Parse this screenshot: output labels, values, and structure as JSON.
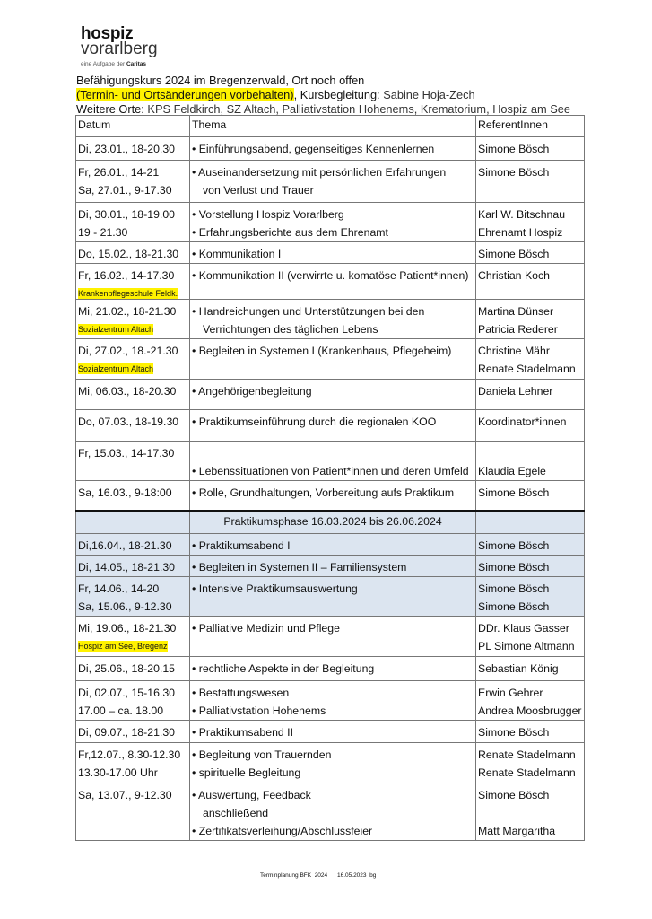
{
  "logo": {
    "line1": "hospiz",
    "line2": "vorarlberg",
    "tagline": "eine Aufgabe der",
    "brand": "Caritas"
  },
  "header": {
    "title": "Befähigungskurs 2024 im Bregenzerwald, Ort noch offen",
    "reservation": "(Termin- und Ortsänderungen vorbehalten)",
    "course_lead_label": "Kursbegleitung:",
    "course_lead": "Sabine Hoja-Zech",
    "other_places_label": "Weitere Orte:",
    "other_places": "KPS Feldkirch, SZ Altach, Palliativstation Hohenems, Krematorium, Hospiz am See"
  },
  "colors": {
    "highlight": "#fff200",
    "practice_bg": "#dce5f0"
  },
  "table": {
    "headers": [
      "Datum",
      "Thema",
      "ReferentInnen"
    ],
    "rows": [
      {
        "date": [
          "Di, 23.01., 18-20.30"
        ],
        "topic": [
          "Einführungsabend, gegenseitiges Kennenlernen"
        ],
        "speakers": [
          "Simone Bösch"
        ]
      },
      {
        "date": [
          "Fr, 26.01., 14-21",
          "Sa, 27.01., 9-17.30"
        ],
        "topic": [
          "Auseinandersetzung mit persönlichen Erfahrungen",
          "von Verlust und Trauer"
        ],
        "speakers": [
          "Simone Bösch"
        ]
      },
      {
        "date": [
          "Di, 30.01., 18-19.00",
          "19 - 21.30"
        ],
        "topic": [
          "Vorstellung Hospiz Vorarlberg",
          "Erfahrungsberichte aus dem Ehrenamt"
        ],
        "speakers": [
          "Karl W. Bitschnau",
          "Ehrenamt Hospiz"
        ]
      },
      {
        "date": [
          "Do, 15.02., 18-21.30"
        ],
        "topic": [
          "Kommunikation I"
        ],
        "speakers": [
          "Simone Bösch"
        ]
      },
      {
        "date": [
          "Fr, 16.02., 14-17.30"
        ],
        "note": "Krankenpflegeschule Feldk.",
        "topic": [
          "Kommunikation II (verwirrte u. komatöse Patient*innen)"
        ],
        "speakers": [
          "Christian Koch"
        ]
      },
      {
        "date": [
          "Mi, 21.02., 18-21.30"
        ],
        "note": "Sozialzentrum Altach",
        "topic": [
          "Handreichungen und Unterstützungen bei den",
          "Verrichtungen des täglichen Lebens"
        ],
        "speakers": [
          "Martina Dünser",
          "Patricia Rederer"
        ]
      },
      {
        "date": [
          "Di, 27.02., 18.-21.30"
        ],
        "note": "Sozialzentrum Altach",
        "topic": [
          "Begleiten in Systemen I (Krankenhaus, Pflegeheim)"
        ],
        "speakers": [
          "Christine Mähr",
          "Renate Stadelmann"
        ]
      },
      {
        "date": [
          "Mi, 06.03., 18-20.30"
        ],
        "topic": [
          "Angehörigenbegleitung"
        ],
        "speakers": [
          "Daniela Lehner"
        ]
      },
      {
        "date": [
          "Do, 07.03., 18-19.30"
        ],
        "topic": [
          "Praktikumseinführung durch die regionalen KOO"
        ],
        "speakers": [
          "Koordinator*innen"
        ]
      },
      {
        "date": [
          "Fr, 15.03., 14-17.30"
        ],
        "topic": [
          "",
          "Lebenssituationen von Patient*innen und deren Umfeld"
        ],
        "speakers": [
          "",
          "Klaudia Egele"
        ]
      },
      {
        "date": [
          "Sa, 16.03., 9-18:00"
        ],
        "topic": [
          "Rolle, Grundhaltungen, Vorbereitung aufs Praktikum"
        ],
        "speakers": [
          "Simone Bösch"
        ]
      },
      {
        "phase": "Praktikumsphase 16.03.2024 bis 26.06.2024"
      },
      {
        "date": [
          "Di,16.04., 18-21.30"
        ],
        "topic": [
          "Praktikumsabend I"
        ],
        "speakers": [
          "Simone Bösch"
        ],
        "blue": true
      },
      {
        "date": [
          "Di, 14.05., 18-21.30"
        ],
        "topic": [
          "Begleiten in Systemen II – Familiensystem"
        ],
        "speakers": [
          "Simone Bösch"
        ],
        "blue": true
      },
      {
        "date": [
          "Fr, 14.06., 14-20",
          "Sa, 15.06., 9-12.30"
        ],
        "topic": [
          "Intensive Praktikumsauswertung"
        ],
        "speakers": [
          "Simone Bösch",
          "Simone Bösch"
        ],
        "blue": true
      },
      {
        "date": [
          "Mi, 19.06., 18-21.30"
        ],
        "note": "Hospiz am See, Bregenz",
        "topic": [
          "Palliative Medizin und Pflege"
        ],
        "speakers": [
          "DDr. Klaus Gasser",
          "PL Simone Altmann"
        ]
      },
      {
        "date": [
          "Di, 25.06., 18-20.15"
        ],
        "topic": [
          "rechtliche Aspekte in der Begleitung"
        ],
        "speakers": [
          "Sebastian König"
        ]
      },
      {
        "date": [
          "Di, 02.07., 15-16.30",
          "17.00 – ca. 18.00"
        ],
        "topic": [
          "Bestattungswesen",
          "Palliativstation Hohenems"
        ],
        "speakers": [
          "Erwin Gehrer",
          "Andrea Moosbrugger"
        ]
      },
      {
        "date": [
          "Di, 09.07., 18-21.30"
        ],
        "topic": [
          "Praktikumsabend II"
        ],
        "speakers": [
          "Simone Bösch"
        ]
      },
      {
        "date": [
          "Fr,12.07., 8.30-12.30",
          "13.30-17.00 Uhr"
        ],
        "topic": [
          "Begleitung von Trauernden",
          "spirituelle Begleitung"
        ],
        "speakers": [
          "Renate Stadelmann",
          "Renate Stadelmann"
        ]
      },
      {
        "date": [
          "Sa, 13.07., 9-12.30"
        ],
        "topic": [
          "Auswertung, Feedback",
          "anschließend",
          "Zertifikatsverleihung/Abschlussfeier"
        ],
        "speakers": [
          "Simone Bösch",
          "",
          "Matt Margaritha"
        ]
      }
    ]
  },
  "footer": {
    "text": "Terminplanung BFK  2024      16.05.2023  bg"
  }
}
